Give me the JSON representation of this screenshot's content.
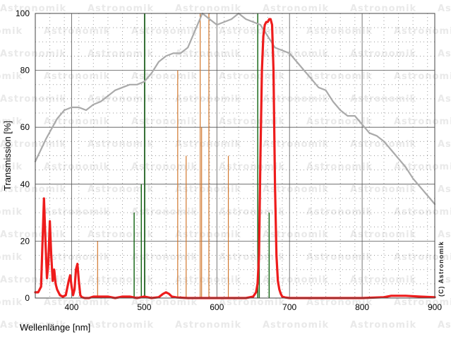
{
  "chart_data": {
    "type": "line",
    "xlabel": "Wellenlänge [nm]",
    "ylabel": "Transmission [%]",
    "xlim": [
      350,
      900
    ],
    "ylim": [
      0,
      100
    ],
    "xticks": [
      400,
      500,
      600,
      700,
      800,
      900
    ],
    "yticks": [
      0,
      20,
      40,
      60,
      80,
      100
    ],
    "grid": true,
    "copyright": "(C) Astronomik",
    "watermark": "Astronomik",
    "colors": {
      "filter_curve": "#ee1c1c",
      "sensitivity_curve": "#aaaaaa",
      "emission_lines_green": "#1d6b1d",
      "emission_lines_orange": "#d2782f",
      "grid_major": "#555555",
      "grid_minor": "#9a9a9a"
    },
    "series": [
      {
        "style": "filter",
        "x": [
          350,
          354,
          358,
          360,
          362,
          364,
          366,
          368,
          370,
          372,
          374,
          376,
          378,
          380,
          382,
          384,
          388,
          392,
          396,
          398,
          400,
          402,
          404,
          406,
          408,
          410,
          412,
          414,
          418,
          424,
          430,
          440,
          450,
          460,
          470,
          480,
          490,
          500,
          510,
          520,
          526,
          530,
          534,
          538,
          545,
          560,
          580,
          600,
          620,
          640,
          650,
          654,
          656,
          658,
          660,
          662,
          664,
          666,
          668,
          670,
          672,
          674,
          676,
          678,
          680,
          682,
          684,
          686,
          688,
          690,
          694,
          700,
          720,
          760,
          800,
          830,
          840,
          860,
          880,
          900
        ],
        "y": [
          2,
          2,
          4,
          20,
          35,
          20,
          7,
          12,
          27,
          15,
          6,
          10,
          5,
          3,
          2,
          1,
          0.5,
          1,
          6,
          8,
          4,
          1,
          3,
          10,
          12,
          6,
          1,
          0.3,
          0,
          0,
          0.5,
          0.5,
          0.5,
          0,
          0.5,
          0.5,
          0,
          0.5,
          0,
          0.3,
          1.5,
          2,
          1.5,
          0.5,
          0.2,
          0,
          0,
          0,
          0,
          0,
          0.5,
          2,
          5,
          15,
          50,
          80,
          92,
          96,
          97,
          97,
          98,
          98,
          96,
          80,
          40,
          15,
          6,
          3,
          1.5,
          0.5,
          0.2,
          0,
          0,
          0,
          0,
          0.3,
          0.8,
          0.8,
          0.5,
          0.3
        ]
      },
      {
        "style": "sensitivity",
        "x": [
          350,
          365,
          380,
          390,
          400,
          410,
          420,
          430,
          440,
          450,
          460,
          470,
          480,
          490,
          500,
          510,
          520,
          530,
          540,
          550,
          560,
          570,
          580,
          590,
          600,
          610,
          620,
          630,
          640,
          650,
          660,
          670,
          680,
          690,
          700,
          710,
          720,
          730,
          740,
          750,
          760,
          770,
          780,
          790,
          800,
          810,
          820,
          830,
          840,
          850,
          860,
          870,
          880,
          890,
          900
        ],
        "y": [
          48,
          56,
          63,
          66,
          67,
          67,
          66,
          68,
          69,
          71,
          73,
          74,
          75,
          75,
          76,
          79,
          83,
          85,
          86,
          86,
          88,
          94,
          100,
          98,
          96,
          97,
          98,
          100,
          98,
          97,
          96,
          92,
          88,
          87,
          86,
          83,
          80,
          77,
          74,
          73,
          69,
          66,
          64,
          64,
          61,
          58,
          57,
          55,
          52,
          49,
          46,
          42,
          39,
          36,
          33
        ]
      }
    ],
    "emission_lines": [
      {
        "x": 435.8,
        "y": 20,
        "group": "orange"
      },
      {
        "x": 486.1,
        "y": 30,
        "group": "green"
      },
      {
        "x": 496.0,
        "y": 40,
        "group": "green"
      },
      {
        "x": 500.7,
        "y": 100,
        "group": "green"
      },
      {
        "x": 546.1,
        "y": 80,
        "group": "orange"
      },
      {
        "x": 557.7,
        "y": 50,
        "group": "orange"
      },
      {
        "x": 577.0,
        "y": 100,
        "group": "orange"
      },
      {
        "x": 579.0,
        "y": 60,
        "group": "orange"
      },
      {
        "x": 589.0,
        "y": 100,
        "group": "orange"
      },
      {
        "x": 615.8,
        "y": 50,
        "group": "orange"
      },
      {
        "x": 656.3,
        "y": 100,
        "group": "green"
      },
      {
        "x": 658.4,
        "y": 30,
        "group": "green"
      },
      {
        "x": 672.0,
        "y": 30,
        "group": "green"
      }
    ]
  }
}
